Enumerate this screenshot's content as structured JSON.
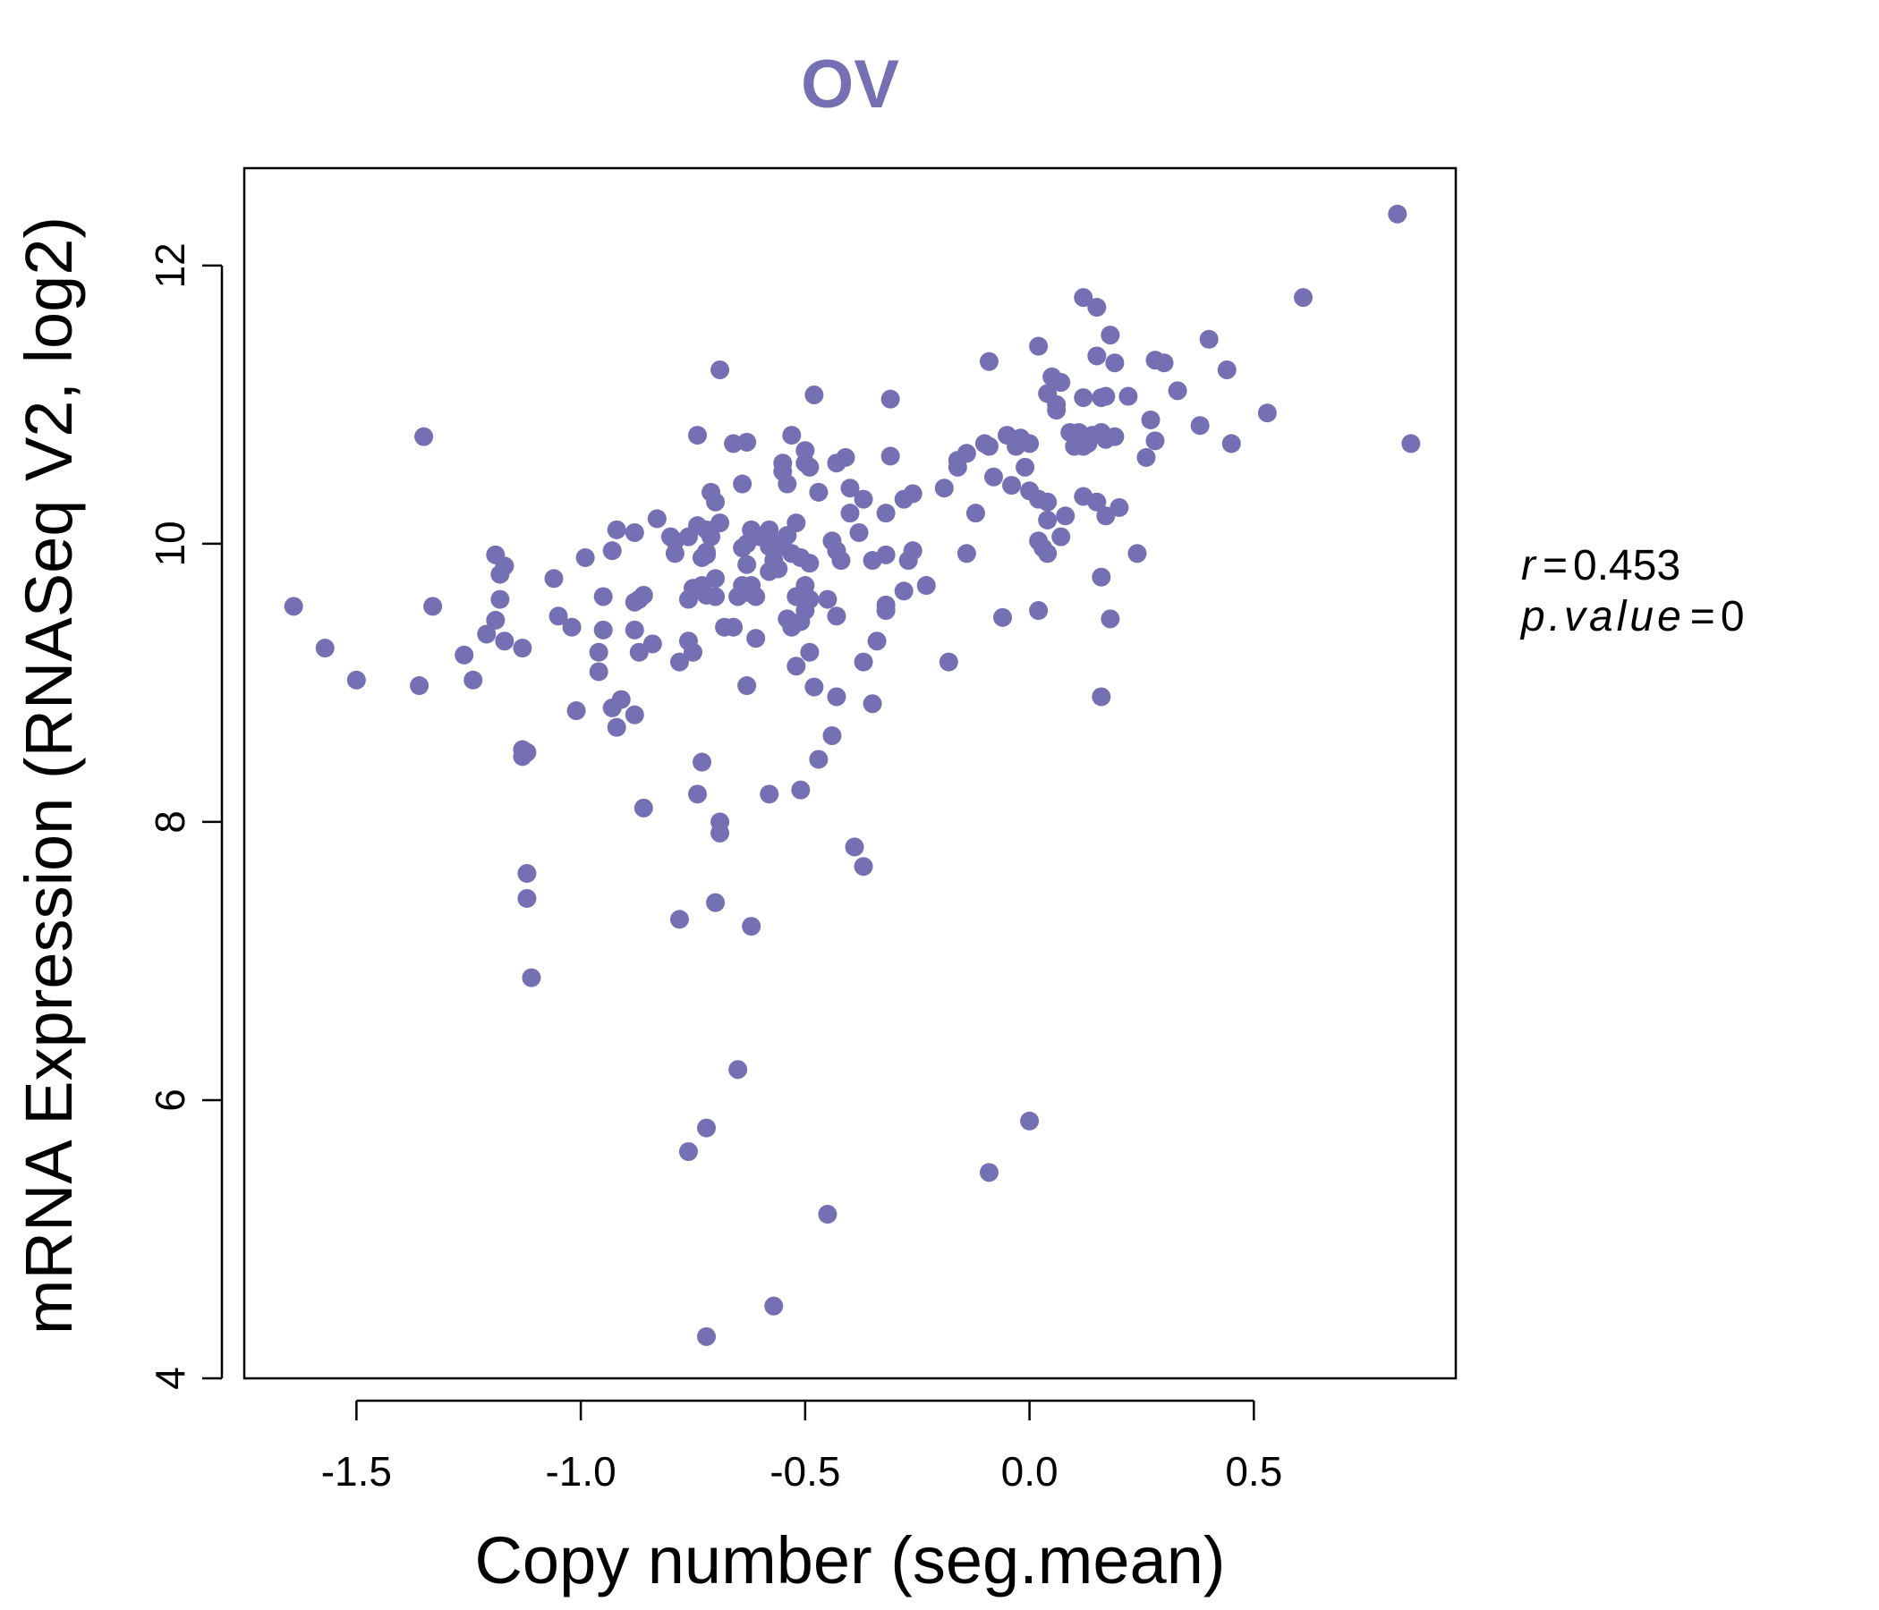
{
  "chart_data": {
    "type": "scatter",
    "title": "OV",
    "xlabel": "Copy number (seg.mean)",
    "ylabel": "mRNA Expression (RNASeq V2, log2)",
    "xlim": [
      -1.75,
      0.95
    ],
    "ylim": [
      4,
      12.7
    ],
    "xticks": [
      -1.5,
      -1.0,
      -0.5,
      0.0,
      0.5
    ],
    "xtick_labels": [
      "-1.5",
      "-1.0",
      "-0.5",
      "0.0",
      "0.5"
    ],
    "yticks": [
      4,
      6,
      8,
      10,
      12
    ],
    "ytick_labels": [
      "4",
      "6",
      "8",
      "10",
      "12"
    ],
    "grid": false,
    "point_color": "#7570b3",
    "annotation": {
      "r_label": "r",
      "r_value": "0.453",
      "p_label": "p.value",
      "p_value": "0"
    },
    "points": [
      [
        0.82,
        12.37
      ],
      [
        0.61,
        11.77
      ],
      [
        0.85,
        10.72
      ],
      [
        0.12,
        11.77
      ],
      [
        0.15,
        11.7
      ],
      [
        0.18,
        11.5
      ],
      [
        0.4,
        11.47
      ],
      [
        0.02,
        11.42
      ],
      [
        0.15,
        11.35
      ],
      [
        0.28,
        11.32
      ],
      [
        0.3,
        11.3
      ],
      [
        0.44,
        11.25
      ],
      [
        0.19,
        11.3
      ],
      [
        -0.09,
        11.31
      ],
      [
        0.05,
        11.2
      ],
      [
        0.07,
        11.16
      ],
      [
        0.04,
        11.08
      ],
      [
        0.06,
        11.0
      ],
      [
        0.06,
        10.96
      ],
      [
        0.12,
        11.05
      ],
      [
        0.16,
        11.05
      ],
      [
        0.17,
        11.06
      ],
      [
        0.22,
        11.06
      ],
      [
        0.33,
        11.1
      ],
      [
        0.27,
        10.89
      ],
      [
        0.38,
        10.85
      ],
      [
        0.53,
        10.94
      ],
      [
        0.45,
        10.72
      ],
      [
        0.28,
        10.74
      ],
      [
        0.26,
        10.62
      ],
      [
        0.09,
        10.8
      ],
      [
        0.11,
        10.8
      ],
      [
        0.13,
        10.72
      ],
      [
        0.1,
        10.7
      ],
      [
        0.14,
        10.78
      ],
      [
        0.16,
        10.8
      ],
      [
        0.17,
        10.75
      ],
      [
        0.19,
        10.77
      ],
      [
        0.12,
        10.7
      ],
      [
        0.0,
        10.72
      ],
      [
        -0.05,
        10.78
      ],
      [
        -0.03,
        10.7
      ],
      [
        -0.02,
        10.76
      ],
      [
        -0.1,
        10.72
      ],
      [
        -0.09,
        10.7
      ],
      [
        -0.14,
        10.65
      ],
      [
        -0.16,
        10.6
      ],
      [
        -0.16,
        10.55
      ],
      [
        -0.08,
        10.48
      ],
      [
        -0.01,
        10.55
      ],
      [
        -0.04,
        10.42
      ],
      [
        -0.19,
        10.4
      ],
      [
        0.0,
        10.38
      ],
      [
        0.02,
        10.32
      ],
      [
        0.04,
        10.3
      ],
      [
        0.12,
        10.34
      ],
      [
        0.15,
        10.3
      ],
      [
        0.2,
        10.26
      ],
      [
        0.17,
        10.2
      ],
      [
        0.08,
        10.2
      ],
      [
        0.04,
        10.17
      ],
      [
        -0.12,
        10.22
      ],
      [
        0.07,
        10.05
      ],
      [
        0.02,
        10.02
      ],
      [
        0.03,
        9.97
      ],
      [
        0.04,
        9.93
      ],
      [
        0.24,
        9.93
      ],
      [
        -0.14,
        9.93
      ],
      [
        0.16,
        9.76
      ],
      [
        0.18,
        9.46
      ],
      [
        0.02,
        9.52
      ],
      [
        -0.06,
        9.47
      ],
      [
        0.16,
        8.9
      ],
      [
        -0.18,
        9.15
      ],
      [
        -0.31,
        11.04
      ],
      [
        -0.31,
        10.63
      ],
      [
        -0.32,
        10.22
      ],
      [
        -0.28,
        10.32
      ],
      [
        -0.26,
        10.36
      ],
      [
        -0.27,
        9.88
      ],
      [
        -0.26,
        9.95
      ],
      [
        -0.28,
        9.66
      ],
      [
        -0.23,
        9.7
      ],
      [
        -0.32,
        9.92
      ],
      [
        -0.35,
        9.88
      ],
      [
        -0.32,
        9.56
      ],
      [
        -0.32,
        9.52
      ],
      [
        -0.34,
        9.3
      ],
      [
        -0.37,
        9.15
      ],
      [
        -0.35,
        8.85
      ],
      [
        -0.37,
        10.32
      ],
      [
        -0.4,
        10.4
      ],
      [
        -0.4,
        10.22
      ],
      [
        -0.38,
        10.08
      ],
      [
        -0.41,
        10.62
      ],
      [
        -0.43,
        10.58
      ],
      [
        -0.44,
        10.02
      ],
      [
        -0.43,
        9.95
      ],
      [
        -0.42,
        9.88
      ],
      [
        -0.45,
        9.6
      ],
      [
        -0.43,
        9.48
      ],
      [
        -0.43,
        8.9
      ],
      [
        -0.44,
        8.62
      ],
      [
        -0.47,
        10.37
      ],
      [
        -0.48,
        11.07
      ],
      [
        -0.49,
        10.55
      ],
      [
        -0.5,
        10.58
      ],
      [
        -0.5,
        10.67
      ],
      [
        -0.53,
        10.78
      ],
      [
        -0.55,
        10.58
      ],
      [
        -0.55,
        10.52
      ],
      [
        -0.54,
        10.43
      ],
      [
        -0.52,
        10.15
      ],
      [
        -0.54,
        10.06
      ],
      [
        -0.55,
        9.98
      ],
      [
        -0.53,
        9.93
      ],
      [
        -0.51,
        9.9
      ],
      [
        -0.49,
        9.86
      ],
      [
        -0.5,
        9.7
      ],
      [
        -0.52,
        9.62
      ],
      [
        -0.49,
        9.6
      ],
      [
        -0.5,
        9.52
      ],
      [
        -0.51,
        9.44
      ],
      [
        -0.53,
        9.4
      ],
      [
        -0.54,
        9.46
      ],
      [
        -0.49,
        9.22
      ],
      [
        -0.52,
        9.12
      ],
      [
        -0.48,
        8.97
      ],
      [
        -0.47,
        8.45
      ],
      [
        -0.51,
        8.23
      ],
      [
        -0.56,
        10.0
      ],
      [
        -0.58,
        9.98
      ],
      [
        -0.57,
        9.88
      ],
      [
        -0.56,
        9.82
      ],
      [
        -0.58,
        9.8
      ],
      [
        -0.59,
        10.05
      ],
      [
        -0.58,
        10.1
      ],
      [
        -0.6,
        10.05
      ],
      [
        -0.62,
        10.1
      ],
      [
        -0.63,
        10.0
      ],
      [
        -0.64,
        9.97
      ],
      [
        -0.63,
        9.85
      ],
      [
        -0.62,
        9.7
      ],
      [
        -0.64,
        9.7
      ],
      [
        -0.61,
        9.62
      ],
      [
        -0.63,
        9.65
      ],
      [
        -0.65,
        9.62
      ],
      [
        -0.66,
        9.4
      ],
      [
        -0.68,
        9.4
      ],
      [
        -0.61,
        9.32
      ],
      [
        -0.63,
        8.98
      ],
      [
        -0.58,
        8.2
      ],
      [
        -0.69,
        8.0
      ],
      [
        -0.66,
        10.72
      ],
      [
        -0.63,
        10.73
      ],
      [
        -0.64,
        10.43
      ],
      [
        -0.7,
        10.3
      ],
      [
        -0.71,
        10.37
      ],
      [
        -0.69,
        10.15
      ],
      [
        -0.72,
        10.1
      ],
      [
        -0.71,
        10.05
      ],
      [
        -0.74,
        10.13
      ],
      [
        -0.76,
        10.05
      ],
      [
        -0.72,
        9.94
      ],
      [
        -0.73,
        9.9
      ],
      [
        -0.7,
        9.75
      ],
      [
        -0.73,
        9.7
      ],
      [
        -0.75,
        9.68
      ],
      [
        -0.76,
        9.6
      ],
      [
        -0.7,
        9.62
      ],
      [
        -0.72,
        9.63
      ],
      [
        -0.72,
        9.92
      ],
      [
        -0.76,
        9.3
      ],
      [
        -0.75,
        9.22
      ],
      [
        -0.78,
        9.15
      ],
      [
        -0.73,
        8.43
      ],
      [
        -0.74,
        8.2
      ],
      [
        -0.69,
        7.92
      ],
      [
        -0.7,
        7.42
      ],
      [
        -0.78,
        7.3
      ],
      [
        -0.62,
        7.25
      ],
      [
        -0.74,
        10.78
      ],
      [
        -0.69,
        11.25
      ],
      [
        -0.79,
        10.02
      ],
      [
        -0.8,
        10.05
      ],
      [
        -0.79,
        9.93
      ],
      [
        -0.83,
        10.18
      ],
      [
        -0.88,
        10.08
      ],
      [
        -0.92,
        10.1
      ],
      [
        -0.93,
        9.95
      ],
      [
        -0.86,
        9.63
      ],
      [
        -0.87,
        9.6
      ],
      [
        -0.88,
        9.58
      ],
      [
        -0.84,
        9.28
      ],
      [
        -0.87,
        9.22
      ],
      [
        -0.88,
        9.38
      ],
      [
        -0.95,
        9.62
      ],
      [
        -0.95,
        9.38
      ],
      [
        -0.96,
        9.22
      ],
      [
        -0.96,
        9.08
      ],
      [
        -0.93,
        8.82
      ],
      [
        -0.91,
        8.88
      ],
      [
        -0.88,
        8.77
      ],
      [
        -0.92,
        8.68
      ],
      [
        -0.86,
        8.1
      ],
      [
        -0.99,
        9.9
      ],
      [
        -1.02,
        9.4
      ],
      [
        -1.01,
        8.8
      ],
      [
        -1.06,
        9.75
      ],
      [
        -1.05,
        9.48
      ],
      [
        -1.17,
        9.84
      ],
      [
        -1.19,
        9.92
      ],
      [
        -1.18,
        9.78
      ],
      [
        -1.18,
        9.6
      ],
      [
        -1.19,
        9.45
      ],
      [
        -1.17,
        9.3
      ],
      [
        -1.21,
        9.35
      ],
      [
        -1.13,
        9.25
      ],
      [
        -1.24,
        9.02
      ],
      [
        -1.26,
        9.2
      ],
      [
        -1.33,
        9.55
      ],
      [
        -1.35,
        10.77
      ],
      [
        -1.36,
        8.98
      ],
      [
        -1.5,
        9.02
      ],
      [
        -1.57,
        9.25
      ],
      [
        -1.64,
        9.55
      ],
      [
        -1.13,
        8.52
      ],
      [
        -1.13,
        8.47
      ],
      [
        -1.12,
        8.5
      ],
      [
        -1.12,
        7.63
      ],
      [
        -1.12,
        7.45
      ],
      [
        -1.11,
        6.88
      ],
      [
        -0.65,
        6.22
      ],
      [
        -0.72,
        5.8
      ],
      [
        -0.76,
        5.63
      ],
      [
        -0.45,
        5.18
      ],
      [
        -0.57,
        4.52
      ],
      [
        -0.72,
        4.3
      ],
      [
        0.0,
        5.85
      ],
      [
        -0.09,
        5.48
      ],
      [
        -0.39,
        7.82
      ],
      [
        -0.37,
        7.68
      ]
    ]
  }
}
